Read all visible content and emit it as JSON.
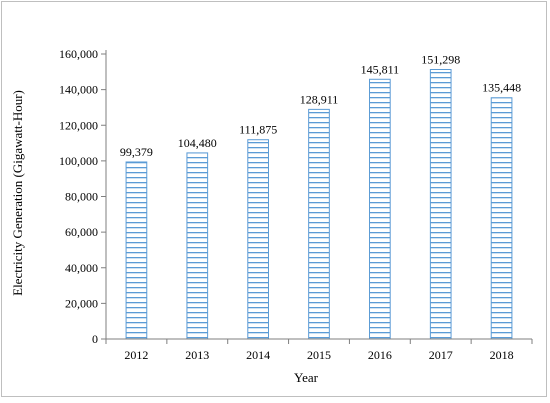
{
  "chart_data": {
    "type": "bar",
    "title": "",
    "xlabel": "Year",
    "ylabel": "Electricity Generation (Gigawatt-Hour)",
    "categories": [
      "2012",
      "2013",
      "2014",
      "2015",
      "2016",
      "2017",
      "2018"
    ],
    "values": [
      99379,
      104480,
      111875,
      128911,
      145811,
      151298,
      135448
    ],
    "value_labels": [
      "99,379",
      "104,480",
      "111,875",
      "128,911",
      "145,811",
      "151,298",
      "135,448"
    ],
    "ylim": [
      0,
      160000
    ],
    "yticks": [
      0,
      20000,
      40000,
      60000,
      80000,
      100000,
      120000,
      140000,
      160000
    ],
    "ytick_labels": [
      "0",
      "20,000",
      "40,000",
      "60,000",
      "80,000",
      "100,000",
      "120,000",
      "140,000",
      "160,000"
    ],
    "grid": false,
    "legend": "none",
    "bar_fill": "horizontal-stripes",
    "colors": {
      "bar_stroke": "#5b9bd5",
      "bar_fill": "#ffffff",
      "axis": "#7f7f7f"
    }
  }
}
